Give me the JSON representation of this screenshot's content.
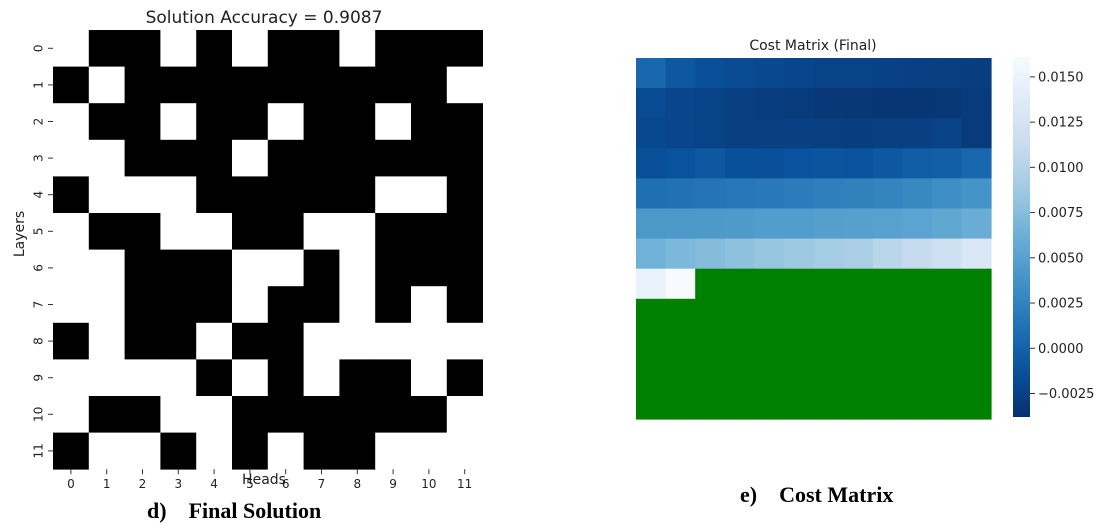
{
  "left_panel": {
    "caption_letter": "d)",
    "caption_text": "Final Solution"
  },
  "right_panel": {
    "caption_letter": "e)",
    "caption_text": "Cost Matrix"
  },
  "chart_data": [
    {
      "type": "heatmap",
      "title": "Solution Accuracy = 0.9087",
      "xlabel": "Heads",
      "ylabel": "Layers",
      "x_ticks": [
        "0",
        "1",
        "2",
        "3",
        "4",
        "5",
        "6",
        "7",
        "8",
        "9",
        "10",
        "11"
      ],
      "y_ticks": [
        "0",
        "1",
        "2",
        "3",
        "4",
        "5",
        "6",
        "7",
        "8",
        "9",
        "10",
        "11"
      ],
      "colors": {
        "1": "#000000",
        "0": "#ffffff"
      },
      "matrix": [
        [
          0,
          1,
          1,
          0,
          1,
          0,
          1,
          1,
          0,
          1,
          1,
          1
        ],
        [
          1,
          0,
          1,
          1,
          1,
          1,
          1,
          1,
          1,
          1,
          1,
          0
        ],
        [
          0,
          1,
          1,
          0,
          1,
          1,
          0,
          1,
          1,
          0,
          1,
          1
        ],
        [
          0,
          0,
          1,
          1,
          1,
          0,
          1,
          1,
          1,
          1,
          1,
          1
        ],
        [
          1,
          0,
          0,
          0,
          1,
          1,
          1,
          1,
          1,
          0,
          0,
          1
        ],
        [
          0,
          1,
          1,
          0,
          0,
          1,
          1,
          0,
          0,
          1,
          1,
          1
        ],
        [
          0,
          0,
          1,
          1,
          1,
          0,
          0,
          1,
          0,
          1,
          1,
          1
        ],
        [
          0,
          0,
          1,
          1,
          1,
          0,
          1,
          1,
          0,
          1,
          0,
          1
        ],
        [
          1,
          0,
          1,
          1,
          0,
          1,
          1,
          0,
          0,
          0,
          0,
          0
        ],
        [
          0,
          0,
          0,
          0,
          1,
          0,
          1,
          0,
          1,
          1,
          0,
          1
        ],
        [
          0,
          1,
          1,
          0,
          0,
          1,
          1,
          1,
          1,
          1,
          1,
          0
        ],
        [
          1,
          0,
          0,
          1,
          0,
          1,
          0,
          1,
          1,
          0,
          0,
          0
        ]
      ]
    },
    {
      "type": "heatmap",
      "title": "Cost Matrix (Final)",
      "colormap": "Blues_r",
      "masked_color": "#008000",
      "vmin": -0.0038,
      "vmax": 0.0161,
      "colorbar_ticks": [
        "0.0150",
        "0.0125",
        "0.0100",
        "0.0075",
        "0.0050",
        "0.0025",
        "0.0000",
        "−0.0025"
      ],
      "colorbar_tick_values": [
        0.015,
        0.0125,
        0.01,
        0.0075,
        0.005,
        0.0025,
        0.0,
        -0.0025
      ],
      "matrix": [
        [
          0.0004,
          -0.0008,
          -0.0015,
          -0.0018,
          -0.002,
          -0.0022,
          -0.0024,
          -0.0024,
          -0.0025,
          -0.0026,
          -0.0027,
          -0.0028
        ],
        [
          -0.0018,
          -0.0022,
          -0.0024,
          -0.0026,
          -0.0028,
          -0.003,
          -0.0032,
          -0.0033,
          -0.0034,
          -0.0034,
          -0.0033,
          -0.003
        ],
        [
          -0.002,
          -0.0022,
          -0.0024,
          -0.0026,
          -0.0027,
          -0.0026,
          -0.0027,
          -0.0028,
          -0.0027,
          -0.0026,
          -0.0024,
          -0.003
        ],
        [
          -0.0015,
          -0.0012,
          -0.0008,
          -0.0014,
          -0.0015,
          -0.0012,
          -0.001,
          -0.0012,
          -0.0008,
          -0.0004,
          -0.0002,
          0.0004
        ],
        [
          0.001,
          0.0012,
          0.0014,
          0.0016,
          0.0018,
          0.002,
          0.0022,
          0.0024,
          0.0026,
          0.003,
          0.0034,
          0.0038
        ],
        [
          0.0042,
          0.0042,
          0.0043,
          0.0044,
          0.0046,
          0.0046,
          0.0048,
          0.0049,
          0.005,
          0.0052,
          0.0055,
          0.006
        ],
        [
          0.0064,
          0.007,
          0.0074,
          0.0078,
          0.0082,
          0.0086,
          0.009,
          0.0094,
          0.0104,
          0.0112,
          0.012,
          0.0132
        ],
        [
          0.0148,
          0.0161,
          null,
          null,
          null,
          null,
          null,
          null,
          null,
          null,
          null,
          null
        ],
        [
          null,
          null,
          null,
          null,
          null,
          null,
          null,
          null,
          null,
          null,
          null,
          null
        ],
        [
          null,
          null,
          null,
          null,
          null,
          null,
          null,
          null,
          null,
          null,
          null,
          null
        ],
        [
          null,
          null,
          null,
          null,
          null,
          null,
          null,
          null,
          null,
          null,
          null,
          null
        ],
        [
          null,
          null,
          null,
          null,
          null,
          null,
          null,
          null,
          null,
          null,
          null,
          null
        ]
      ]
    }
  ]
}
